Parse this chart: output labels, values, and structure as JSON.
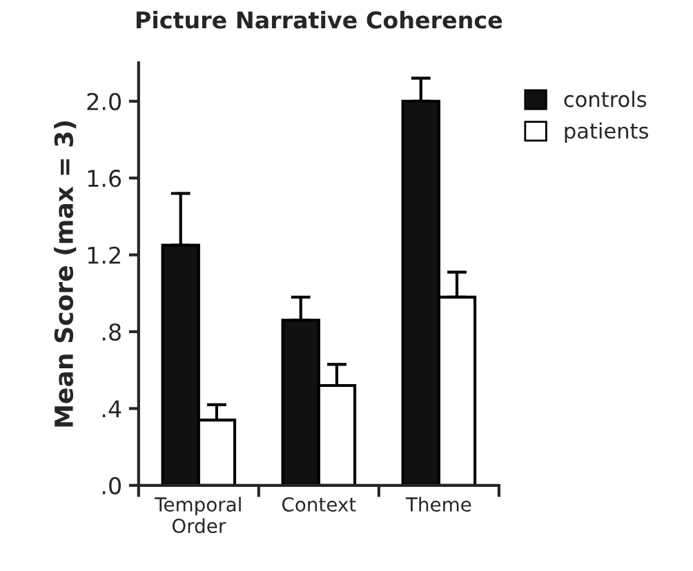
{
  "chart_data": {
    "type": "bar",
    "title": "Picture Narrative Coherence",
    "ylabel": "Mean Score (max = 3)",
    "categories": [
      "Temporal\nOrder",
      "Context",
      "Theme"
    ],
    "series": [
      {
        "name": "controls",
        "color": "#111111",
        "values": [
          1.25,
          0.86,
          2.0
        ],
        "errors": [
          [
            1.25,
            1.52
          ],
          [
            0.86,
            0.98
          ],
          [
            2.0,
            2.12
          ]
        ]
      },
      {
        "name": "patients",
        "color": "#ffffff",
        "values": [
          0.34,
          0.52,
          0.98
        ],
        "errors": [
          [
            0.34,
            0.42
          ],
          [
            0.52,
            0.63
          ],
          [
            0.98,
            1.11
          ]
        ]
      }
    ],
    "ylim": [
      0,
      2.2
    ],
    "yticks": [
      {
        "value": 0,
        "label": ".0"
      },
      {
        "value": 0.4,
        "label": ".4"
      },
      {
        "value": 0.8,
        "label": ".8"
      },
      {
        "value": 1.2,
        "label": "1.2"
      },
      {
        "value": 1.6,
        "label": "1.6"
      },
      {
        "value": 2.0,
        "label": "2.0"
      }
    ],
    "legend": "top right",
    "grid": false
  }
}
